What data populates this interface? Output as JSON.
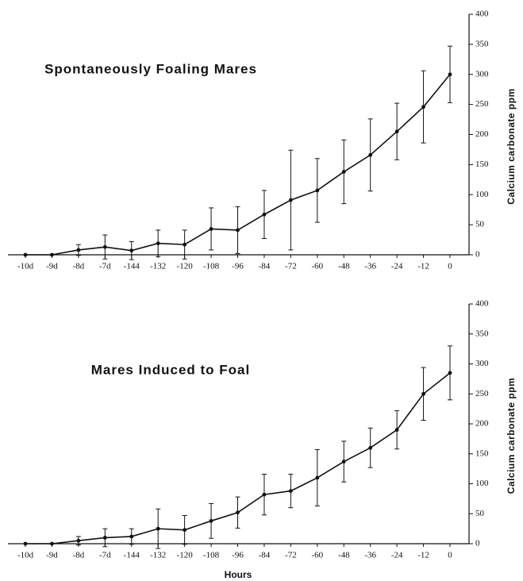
{
  "chart_data": [
    {
      "type": "line",
      "title": "Spontaneously Foaling Mares",
      "y_label": "Calcium carbonate ppm",
      "categories": [
        "-10d",
        "-9d",
        "-8d",
        "-7d",
        "-144",
        "-132",
        "-120",
        "-108",
        "-96",
        "-84",
        "-72",
        "-60",
        "-48",
        "-36",
        "-24",
        "-12",
        "0"
      ],
      "values": [
        0,
        0,
        8,
        13,
        7,
        19,
        17,
        43,
        41,
        67,
        91,
        107,
        138,
        166,
        205,
        246,
        300
      ],
      "errors": [
        0,
        0,
        9,
        20,
        15,
        22,
        24,
        35,
        39,
        40,
        83,
        53,
        53,
        60,
        47,
        60,
        47
      ],
      "color": "#111111",
      "ylim": [
        0,
        400
      ],
      "yticks": [
        0,
        50,
        100,
        150,
        200,
        250,
        300,
        350,
        400
      ]
    },
    {
      "type": "line",
      "title": "Mares Induced to Foal",
      "y_label": "Calcium carbonate ppm",
      "x_label": "Hours",
      "categories": [
        "-10d",
        "-9d",
        "-8d",
        "-7d",
        "-144",
        "-132",
        "-120",
        "-108",
        "-96",
        "-84",
        "-72",
        "-60",
        "-48",
        "-36",
        "-24",
        "-12",
        "0"
      ],
      "values": [
        0,
        0,
        5,
        10,
        12,
        25,
        23,
        38,
        52,
        82,
        88,
        110,
        137,
        160,
        190,
        250,
        285
      ],
      "errors": [
        0,
        0,
        7,
        15,
        13,
        33,
        24,
        29,
        26,
        34,
        28,
        47,
        34,
        33,
        32,
        44,
        45
      ],
      "color": "#111111",
      "ylim": [
        0,
        400
      ],
      "yticks": [
        0,
        50,
        100,
        150,
        200,
        250,
        300,
        350,
        400
      ]
    }
  ]
}
